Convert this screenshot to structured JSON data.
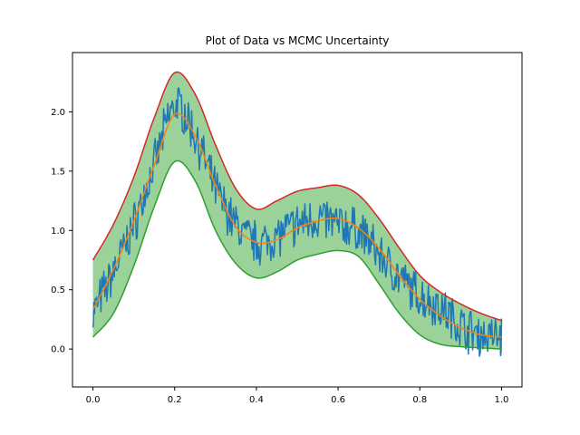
{
  "chart_data": {
    "type": "line",
    "title": "Plot of Data vs MCMC Uncertainty",
    "xlabel": "",
    "ylabel": "",
    "xlim": [
      -0.05,
      1.05
    ],
    "ylim": [
      -0.32,
      2.5
    ],
    "grid": false,
    "x_ticks": [
      0.0,
      0.2,
      0.4,
      0.6,
      0.8,
      1.0
    ],
    "x_tick_labels": [
      "0.0",
      "0.2",
      "0.4",
      "0.6",
      "0.8",
      "1.0"
    ],
    "y_ticks": [
      0.0,
      0.5,
      1.0,
      1.5,
      2.0
    ],
    "y_tick_labels": [
      "0.0",
      "0.5",
      "1.0",
      "1.5",
      "2.0"
    ],
    "colors": {
      "data": "#1f77b4",
      "mean": "#ff7f0e",
      "lower": "#2ca02c",
      "upper": "#d62728",
      "band": "#2ca02c"
    },
    "x": [
      0.0,
      0.05,
      0.1,
      0.15,
      0.2,
      0.25,
      0.3,
      0.35,
      0.4,
      0.45,
      0.5,
      0.55,
      0.6,
      0.65,
      0.7,
      0.75,
      0.8,
      0.85,
      0.9,
      0.95,
      1.0
    ],
    "series": [
      {
        "role": "data",
        "values": [
          0.3,
          0.65,
          1.05,
          1.55,
          2.05,
          1.8,
          1.35,
          1.05,
          0.9,
          0.95,
          1.05,
          1.1,
          1.05,
          1.0,
          0.8,
          0.6,
          0.45,
          0.35,
          0.2,
          0.12,
          0.1
        ]
      },
      {
        "role": "mean",
        "values": [
          0.33,
          0.67,
          1.08,
          1.55,
          1.98,
          1.8,
          1.38,
          1.03,
          0.9,
          0.92,
          1.02,
          1.08,
          1.1,
          1.02,
          0.85,
          0.62,
          0.42,
          0.28,
          0.18,
          0.12,
          0.1
        ]
      },
      {
        "role": "lower",
        "values": [
          0.1,
          0.3,
          0.7,
          1.2,
          1.58,
          1.42,
          1.0,
          0.72,
          0.6,
          0.65,
          0.75,
          0.8,
          0.83,
          0.78,
          0.55,
          0.3,
          0.12,
          0.04,
          0.02,
          0.01,
          0.0
        ]
      },
      {
        "role": "upper",
        "values": [
          0.75,
          1.05,
          1.45,
          1.95,
          2.33,
          2.15,
          1.72,
          1.35,
          1.18,
          1.25,
          1.33,
          1.36,
          1.38,
          1.3,
          1.1,
          0.85,
          0.62,
          0.48,
          0.38,
          0.3,
          0.24
        ]
      }
    ]
  }
}
